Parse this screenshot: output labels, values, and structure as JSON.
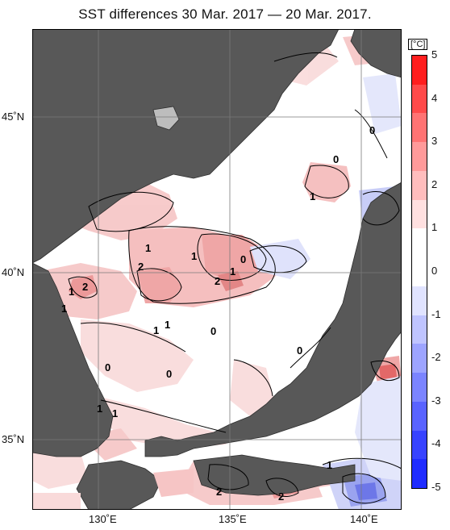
{
  "title": "SST differences 30 Mar. 2017 — 20 Mar. 2017.",
  "x_ticks": [
    "130˚E",
    "135˚E",
    "140˚E"
  ],
  "y_ticks": [
    "45˚N",
    "40˚N",
    "35˚N"
  ],
  "colorbar": {
    "unit": "[°C]",
    "ticks": [
      "5",
      "4",
      "3",
      "2",
      "1",
      "0",
      "-1",
      "-2",
      "-3",
      "-4",
      "-5"
    ],
    "colors": [
      "#ff1e1e",
      "#ff4a4a",
      "#ff7373",
      "#ff9a9a",
      "#ffbdbd",
      "#ffe0e0",
      "#ffffff",
      "#ffffff",
      "#e0e3ff",
      "#bfc4ff",
      "#9da4ff",
      "#7b84ff",
      "#5963ff",
      "#3743ff",
      "#1f2cff"
    ]
  },
  "contour_labels": [
    "0",
    "1",
    "0",
    "1",
    "1",
    "2",
    "1",
    "0",
    "2",
    "1",
    "2",
    "1",
    "1",
    "0",
    "0",
    "1",
    "0",
    "1",
    "1",
    "2",
    "2",
    "0",
    "1"
  ],
  "colors": {
    "land": "#585858",
    "sea": "#ffffff",
    "warm": "#f3a9a9",
    "cool": "#b9c0f3"
  }
}
